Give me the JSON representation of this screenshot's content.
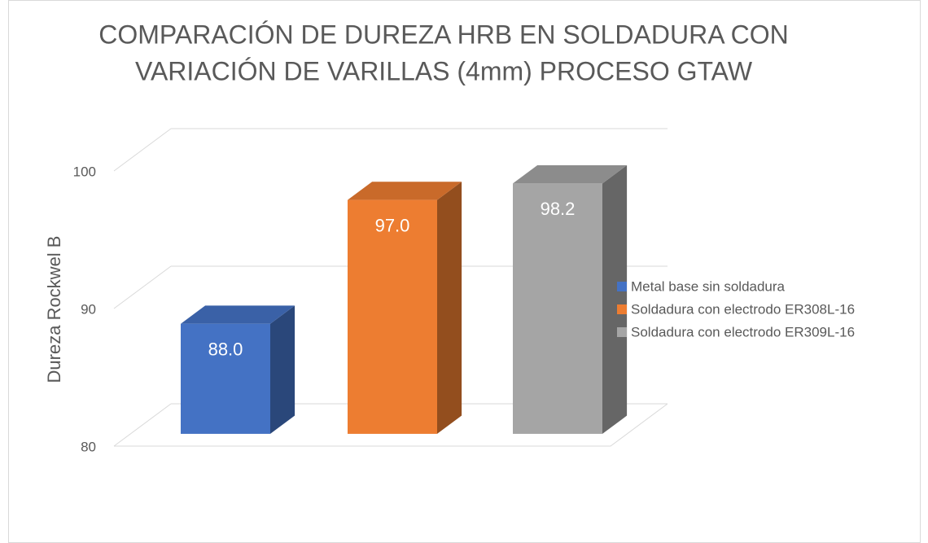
{
  "chart_data": {
    "type": "bar3d",
    "title": "COMPARACIÓN DE DUREZA HRB EN SOLDADURA CON",
    "subtitle": "VARIACIÓN DE VARILLAS (4mm) PROCESO GTAW",
    "y_label": "Dureza Rockwel B",
    "series": [
      {
        "name": "Metal base sin soldadura",
        "color": "#4472c4",
        "values": [
          88
        ],
        "value_labels": [
          "88.0"
        ]
      },
      {
        "name": "Soldadura con electrodo ER308L-16",
        "color": "#ed7d31",
        "values": [
          97
        ],
        "value_labels": [
          "97.0"
        ]
      },
      {
        "name": "Soldadura con electrodo ER309L-16",
        "color": "#a5a5a5",
        "values": [
          98.2
        ],
        "value_labels": [
          "98.2"
        ]
      }
    ],
    "ylim": [
      80,
      100
    ],
    "yticks": [
      80,
      90,
      100
    ],
    "grid": true,
    "legend": "right"
  }
}
